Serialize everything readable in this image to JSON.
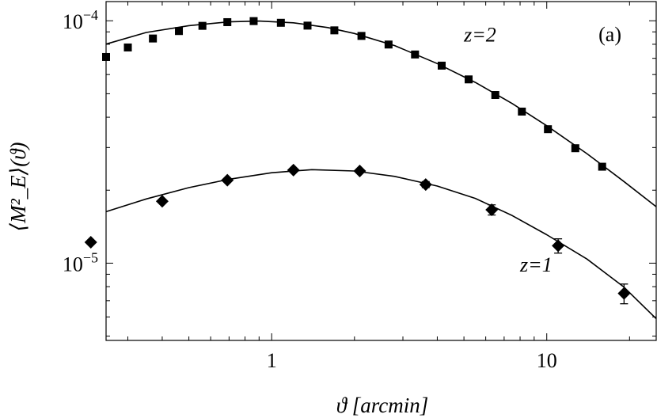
{
  "chart_data": {
    "type": "scatter",
    "title": "",
    "xlabel": "ϑ [arcmin]",
    "ylabel": "⟨M²_E⟩(ϑ)",
    "xscale": "log",
    "yscale": "log",
    "xlim": [
      0.25,
      25
    ],
    "ylim": [
      4.8e-06,
      0.00012
    ],
    "grid": false,
    "x_ticks": [
      {
        "value": 1,
        "label": "1"
      },
      {
        "value": 10,
        "label": "10"
      }
    ],
    "y_ticks": [
      {
        "value": 1e-05,
        "base": "10",
        "exp": "−5"
      },
      {
        "value": 0.0001,
        "base": "10",
        "exp": "−4"
      }
    ],
    "panel_label": "(a)",
    "series": [
      {
        "name": "z=2",
        "marker": "square",
        "points": [
          {
            "x": 0.25,
            "y": 7.09e-05
          },
          {
            "x": 0.3,
            "y": 7.76e-05
          },
          {
            "x": 0.37,
            "y": 8.45e-05
          },
          {
            "x": 0.46,
            "y": 9.07e-05
          },
          {
            "x": 0.56,
            "y": 9.53e-05
          },
          {
            "x": 0.69,
            "y": 9.87e-05
          },
          {
            "x": 0.86,
            "y": 9.97e-05
          },
          {
            "x": 1.08,
            "y": 9.81e-05
          },
          {
            "x": 1.35,
            "y": 9.55e-05
          },
          {
            "x": 1.69,
            "y": 9.13e-05
          },
          {
            "x": 2.12,
            "y": 8.66e-05
          },
          {
            "x": 2.66,
            "y": 7.98e-05
          },
          {
            "x": 3.32,
            "y": 7.26e-05
          },
          {
            "x": 4.15,
            "y": 6.53e-05
          },
          {
            "x": 5.2,
            "y": 5.73e-05
          },
          {
            "x": 6.5,
            "y": 4.94e-05
          },
          {
            "x": 8.12,
            "y": 4.22e-05
          },
          {
            "x": 10.1,
            "y": 3.57e-05
          },
          {
            "x": 12.7,
            "y": 2.98e-05
          },
          {
            "x": 15.9,
            "y": 2.5e-05
          }
        ]
      },
      {
        "name": "z=1",
        "marker": "diamond",
        "points": [
          {
            "x": 0.22,
            "y": 1.22e-05
          },
          {
            "x": 0.4,
            "y": 1.8e-05
          },
          {
            "x": 0.69,
            "y": 2.2e-05
          },
          {
            "x": 1.2,
            "y": 2.42e-05
          },
          {
            "x": 2.09,
            "y": 2.4e-05
          },
          {
            "x": 3.63,
            "y": 2.11e-05,
            "err": 6e-07
          },
          {
            "x": 6.31,
            "y": 1.66e-05,
            "err": 8e-07
          },
          {
            "x": 11.0,
            "y": 1.18e-05,
            "err": 8e-07
          },
          {
            "x": 19.1,
            "y": 7.5e-06,
            "err": 7e-07
          }
        ]
      }
    ],
    "curves": [
      {
        "name": "z=2 model",
        "points": [
          {
            "x": 0.25,
            "y": 8.01e-05
          },
          {
            "x": 0.35,
            "y": 8.95e-05
          },
          {
            "x": 0.5,
            "y": 9.55e-05
          },
          {
            "x": 0.7,
            "y": 9.9e-05
          },
          {
            "x": 0.9,
            "y": 9.97e-05
          },
          {
            "x": 1.2,
            "y": 9.81e-05
          },
          {
            "x": 1.6,
            "y": 9.38e-05
          },
          {
            "x": 2.0,
            "y": 8.86e-05
          },
          {
            "x": 2.8,
            "y": 7.9e-05
          },
          {
            "x": 4.0,
            "y": 6.66e-05
          },
          {
            "x": 5.5,
            "y": 5.57e-05
          },
          {
            "x": 7.5,
            "y": 4.55e-05
          },
          {
            "x": 10.0,
            "y": 3.69e-05
          },
          {
            "x": 14.0,
            "y": 2.83e-05
          },
          {
            "x": 19.0,
            "y": 2.18e-05
          },
          {
            "x": 25.0,
            "y": 1.71e-05
          }
        ]
      },
      {
        "name": "z=1 model",
        "points": [
          {
            "x": 0.25,
            "y": 1.63e-05
          },
          {
            "x": 0.35,
            "y": 1.84e-05
          },
          {
            "x": 0.5,
            "y": 2.05e-05
          },
          {
            "x": 0.7,
            "y": 2.22e-05
          },
          {
            "x": 1.0,
            "y": 2.36e-05
          },
          {
            "x": 1.4,
            "y": 2.43e-05
          },
          {
            "x": 2.0,
            "y": 2.4e-05
          },
          {
            "x": 2.8,
            "y": 2.28e-05
          },
          {
            "x": 4.0,
            "y": 2.08e-05
          },
          {
            "x": 5.5,
            "y": 1.85e-05
          },
          {
            "x": 7.5,
            "y": 1.57e-05
          },
          {
            "x": 10.0,
            "y": 1.31e-05
          },
          {
            "x": 14.0,
            "y": 1.04e-05
          },
          {
            "x": 19.0,
            "y": 8e-06
          },
          {
            "x": 25.0,
            "y": 5.9e-06
          }
        ]
      }
    ],
    "annotations": [
      {
        "text": "z=2",
        "x": 5.0,
        "y": 8.22e-05
      },
      {
        "text": "z=1",
        "x": 8.0,
        "y": 9.25e-06
      }
    ]
  }
}
